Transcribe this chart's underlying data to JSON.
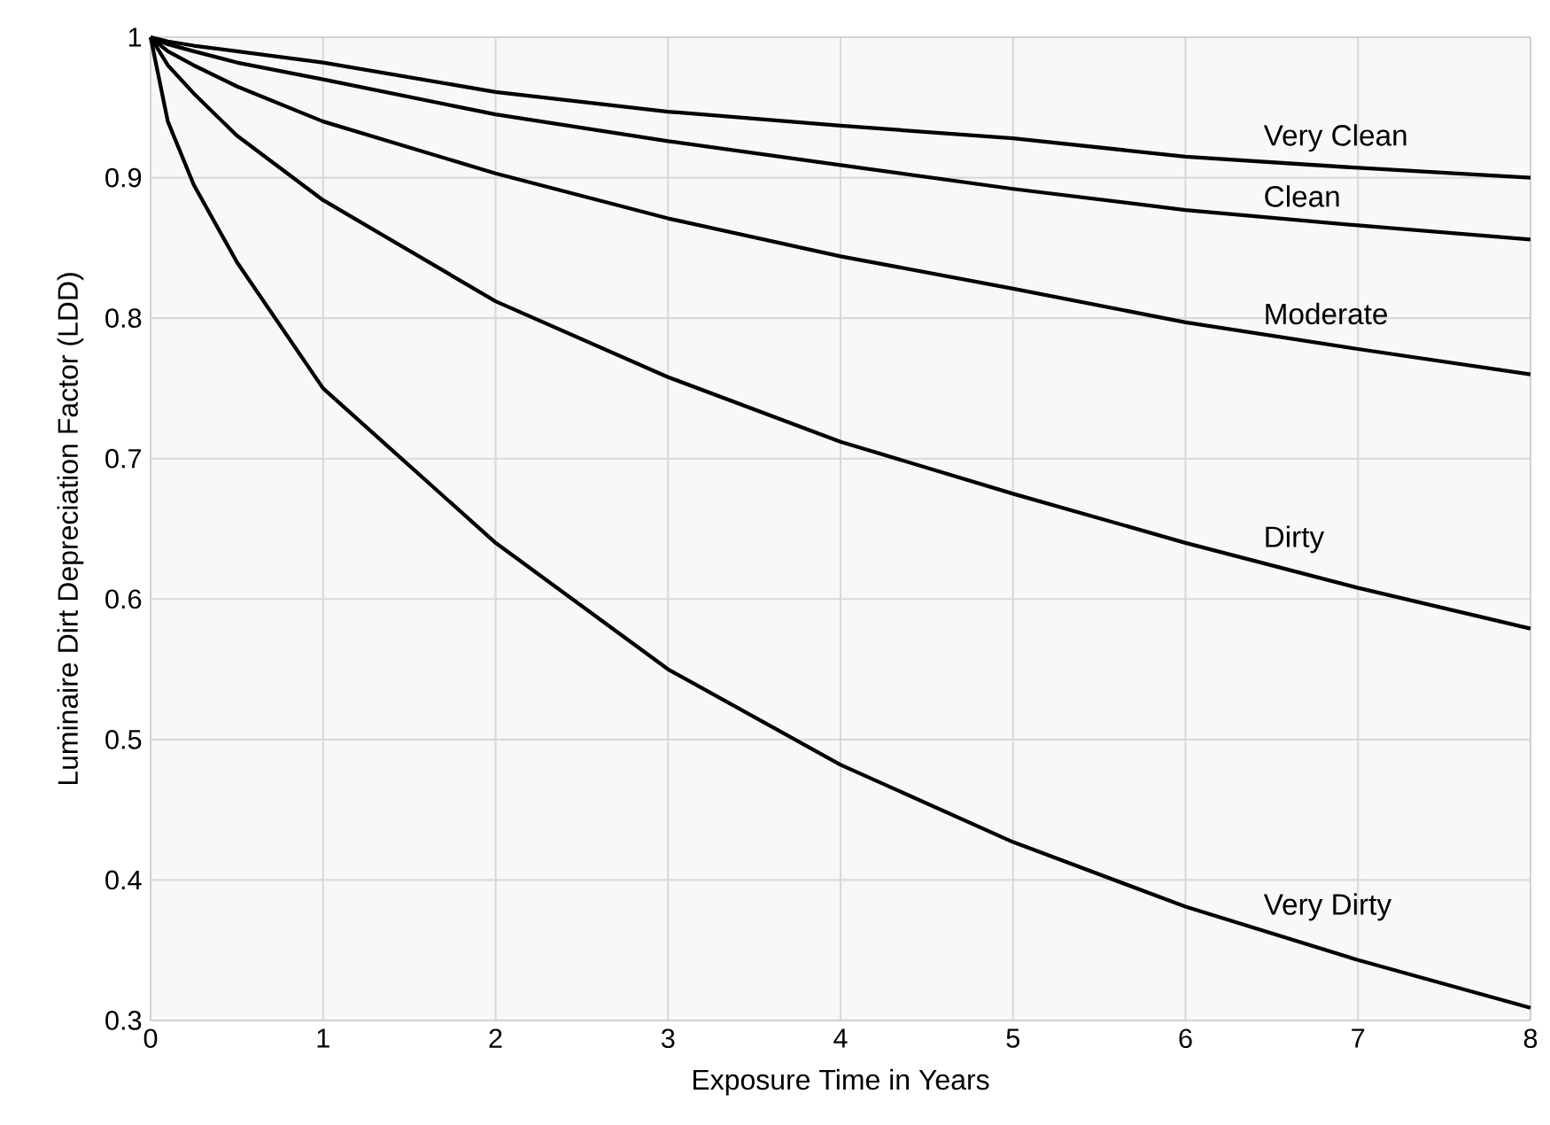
{
  "chart_data": {
    "type": "line",
    "xlabel": "Exposure Time in Years",
    "ylabel": "Luminaire Dirt Depreciation Factor (LDD)",
    "xlim": [
      0,
      8
    ],
    "ylim": [
      0.3,
      1
    ],
    "xticks": [
      0,
      1,
      2,
      3,
      4,
      5,
      6,
      7,
      8
    ],
    "yticks": [
      0.3,
      0.4,
      0.5,
      0.6,
      0.7,
      0.8,
      0.9,
      1
    ],
    "grid": true,
    "marker": "none",
    "line_style": "solid",
    "x": [
      0,
      0.1,
      0.25,
      0.5,
      1,
      2,
      3,
      4,
      5,
      6,
      7,
      8
    ],
    "series": [
      {
        "name": "Very Clean",
        "color": "#000000",
        "values": [
          1,
          0.997,
          0.994,
          0.99,
          0.982,
          0.961,
          0.947,
          0.937,
          0.928,
          0.915,
          0.907,
          0.9
        ]
      },
      {
        "name": "Clean",
        "color": "#000000",
        "values": [
          1,
          0.995,
          0.99,
          0.982,
          0.97,
          0.945,
          0.926,
          0.909,
          0.892,
          0.877,
          0.866,
          0.856
        ]
      },
      {
        "name": "Moderate",
        "color": "#000000",
        "values": [
          1,
          0.99,
          0.98,
          0.965,
          0.94,
          0.903,
          0.871,
          0.844,
          0.821,
          0.797,
          0.778,
          0.76
        ]
      },
      {
        "name": "Dirty",
        "color": "#000000",
        "values": [
          1,
          0.98,
          0.96,
          0.93,
          0.884,
          0.812,
          0.758,
          0.712,
          0.675,
          0.64,
          0.608,
          0.579
        ]
      },
      {
        "name": "Very Dirty",
        "color": "#000000",
        "values": [
          1,
          0.94,
          0.895,
          0.84,
          0.75,
          0.64,
          0.55,
          0.482,
          0.427,
          0.381,
          0.343,
          0.309
        ]
      }
    ]
  }
}
